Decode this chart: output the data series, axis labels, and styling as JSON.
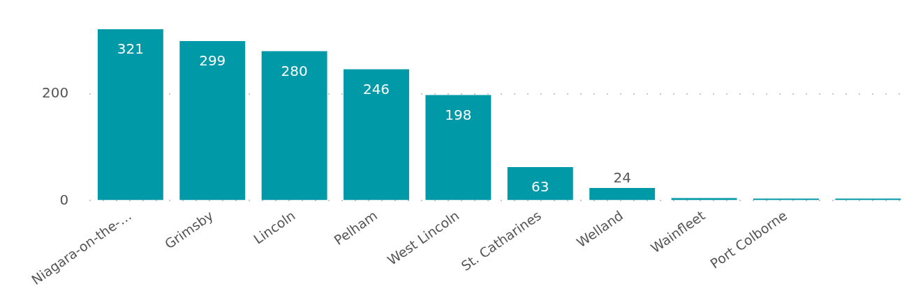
{
  "chart_data": {
    "type": "bar",
    "categories": [
      "Niagara-on-the-…",
      "Grimsby",
      "Lincoln",
      "Pelham",
      "West Lincoln",
      "St. Catharines",
      "Welland",
      "Wainfleet",
      "Port Colborne",
      null
    ],
    "values": [
      321,
      299,
      280,
      246,
      198,
      63,
      24,
      5,
      4,
      4
    ],
    "value_labels": [
      "321",
      "299",
      "280",
      "246",
      "198",
      "63",
      "24",
      null,
      null,
      null
    ],
    "color": "#0099a8",
    "ylim": [
      0,
      321
    ],
    "yticks": [
      0,
      200
    ],
    "grid": "y",
    "legend": false
  }
}
